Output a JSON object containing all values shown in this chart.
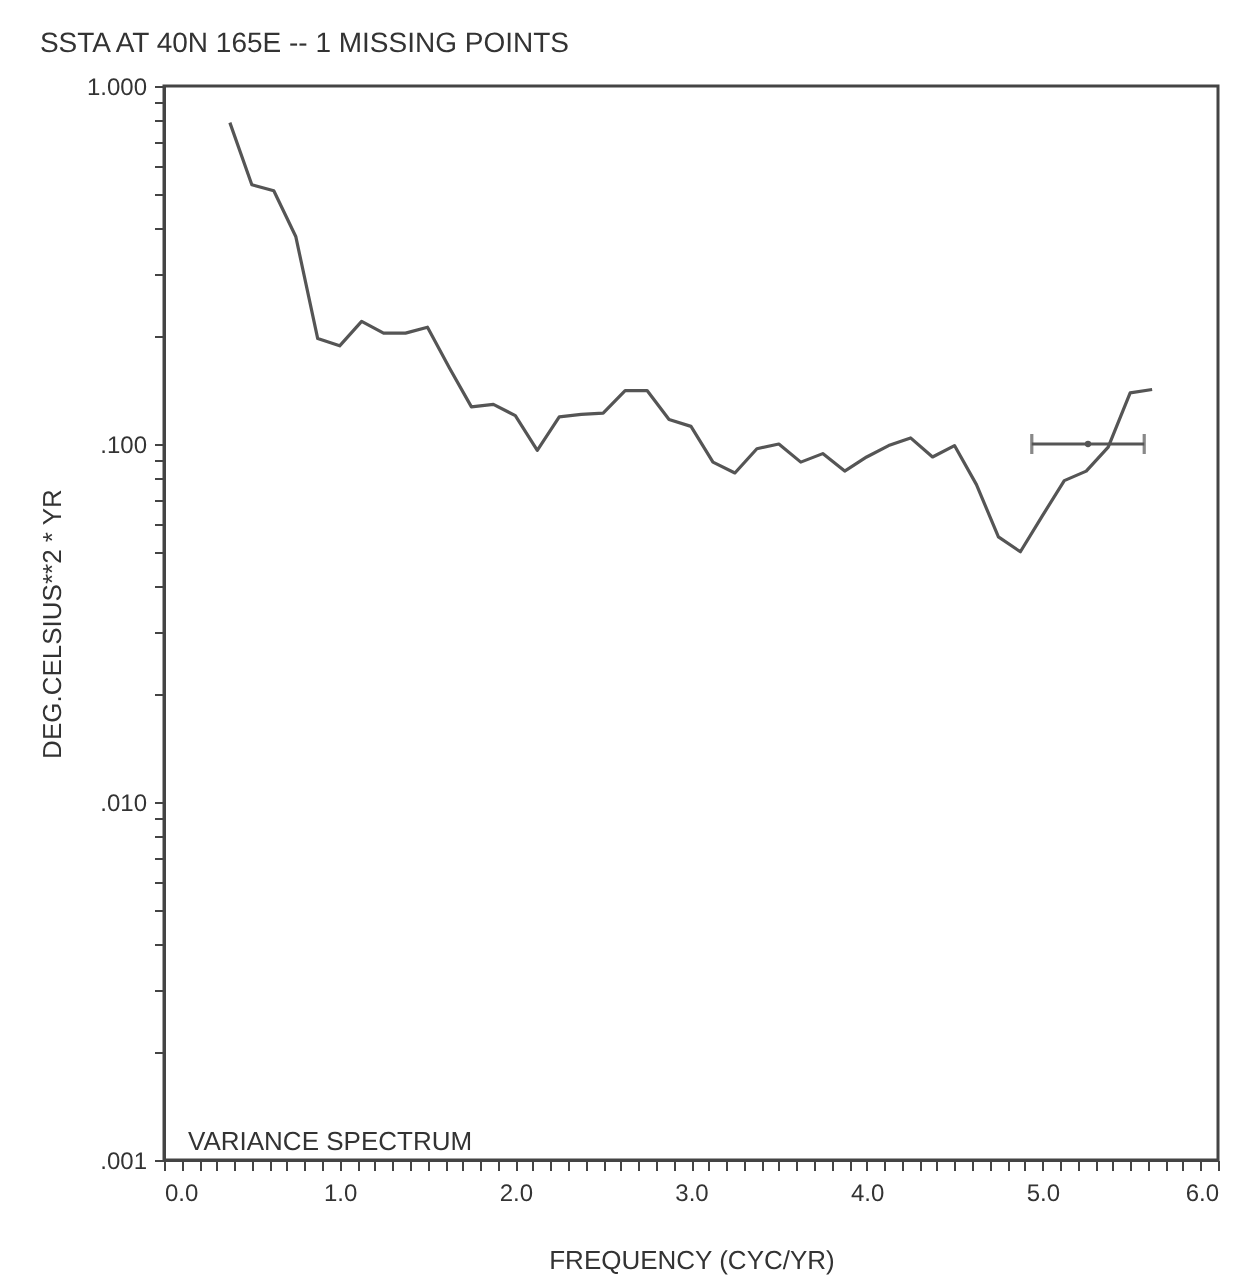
{
  "chart_data": {
    "type": "line",
    "title": "SSTA AT  40N  165E --  1 MISSING POINTS",
    "xlabel": "FREQUENCY (CYC/YR)",
    "ylabel": "DEG.CELSIUS**2 * YR",
    "annotations": [
      "VARIANCE SPECTRUM"
    ],
    "x": [
      0.375,
      0.5,
      0.625,
      0.75,
      0.875,
      1.0,
      1.125,
      1.25,
      1.375,
      1.5,
      1.625,
      1.75,
      1.875,
      2.0,
      2.125,
      2.25,
      2.375,
      2.5,
      2.625,
      2.75,
      2.875,
      3.0,
      3.125,
      3.25,
      3.375,
      3.5,
      3.625,
      3.75,
      3.875,
      4.0,
      4.125,
      4.25,
      4.375,
      4.5,
      4.625,
      4.75,
      4.875,
      5.0,
      5.125,
      5.25,
      5.375,
      5.5,
      5.625
    ],
    "series": [
      {
        "type": "line",
        "color": "#555555",
        "values": [
          0.79,
          0.53,
          0.51,
          0.38,
          0.197,
          0.188,
          0.22,
          0.204,
          0.204,
          0.212,
          0.163,
          0.127,
          0.129,
          0.12,
          0.096,
          0.119,
          0.121,
          0.122,
          0.141,
          0.141,
          0.117,
          0.112,
          0.089,
          0.083,
          0.097,
          0.1,
          0.089,
          0.094,
          0.084,
          0.092,
          0.099,
          0.104,
          0.092,
          0.099,
          0.077,
          0.055,
          0.05,
          0.063,
          0.079,
          0.084,
          0.098,
          0.139,
          0.142
        ]
      },
      {
        "type": "scatter",
        "color": "#555555",
        "x": [
          5.26
        ],
        "values": [
          0.1
        ],
        "xerrors": [
          0.32
        ]
      }
    ],
    "marker": "none",
    "grid": false,
    "log": "y",
    "xlim": [
      0,
      6
    ],
    "ylim": [
      0.001,
      1
    ],
    "xticks": [
      {
        "value": 0,
        "label": "0.0"
      },
      {
        "value": 0.1,
        "label": null
      },
      {
        "value": 0.2,
        "label": null
      },
      {
        "value": 0.3,
        "label": null
      },
      {
        "value": 0.4,
        "label": null
      },
      {
        "value": 0.5,
        "label": null
      },
      {
        "value": 0.6,
        "label": null
      },
      {
        "value": 0.7,
        "label": null
      },
      {
        "value": 0.8,
        "label": null
      },
      {
        "value": 0.9,
        "label": null
      },
      {
        "value": 1,
        "label": "1.0"
      },
      {
        "value": 1.1,
        "label": null
      },
      {
        "value": 1.2,
        "label": null
      },
      {
        "value": 1.3,
        "label": null
      },
      {
        "value": 1.4,
        "label": null
      },
      {
        "value": 1.5,
        "label": null
      },
      {
        "value": 1.6,
        "label": null
      },
      {
        "value": 1.7,
        "label": null
      },
      {
        "value": 1.8,
        "label": null
      },
      {
        "value": 1.9,
        "label": null
      },
      {
        "value": 2,
        "label": "2.0"
      },
      {
        "value": 2.1,
        "label": null
      },
      {
        "value": 2.2,
        "label": null
      },
      {
        "value": 2.3,
        "label": null
      },
      {
        "value": 2.4,
        "label": null
      },
      {
        "value": 2.5,
        "label": null
      },
      {
        "value": 2.6,
        "label": null
      },
      {
        "value": 2.7,
        "label": null
      },
      {
        "value": 2.8,
        "label": null
      },
      {
        "value": 2.9,
        "label": null
      },
      {
        "value": 3,
        "label": "3.0"
      },
      {
        "value": 3.1,
        "label": null
      },
      {
        "value": 3.2,
        "label": null
      },
      {
        "value": 3.3,
        "label": null
      },
      {
        "value": 3.4,
        "label": null
      },
      {
        "value": 3.5,
        "label": null
      },
      {
        "value": 3.6,
        "label": null
      },
      {
        "value": 3.7,
        "label": null
      },
      {
        "value": 3.8,
        "label": null
      },
      {
        "value": 3.9,
        "label": null
      },
      {
        "value": 4,
        "label": "4.0"
      },
      {
        "value": 4.1,
        "label": null
      },
      {
        "value": 4.2,
        "label": null
      },
      {
        "value": 4.3,
        "label": null
      },
      {
        "value": 4.4,
        "label": null
      },
      {
        "value": 4.5,
        "label": null
      },
      {
        "value": 4.6,
        "label": null
      },
      {
        "value": 4.7,
        "label": null
      },
      {
        "value": 4.8,
        "label": null
      },
      {
        "value": 4.9,
        "label": null
      },
      {
        "value": 5,
        "label": "5.0"
      },
      {
        "value": 5.1,
        "label": null
      },
      {
        "value": 5.2,
        "label": null
      },
      {
        "value": 5.3,
        "label": null
      },
      {
        "value": 5.4,
        "label": null
      },
      {
        "value": 5.5,
        "label": null
      },
      {
        "value": 5.6,
        "label": null
      },
      {
        "value": 5.7,
        "label": null
      },
      {
        "value": 5.8,
        "label": null
      },
      {
        "value": 5.9,
        "label": null
      },
      {
        "value": 6,
        "label": "6.0"
      }
    ],
    "yticks": [
      {
        "value": 0.001,
        "label": ".001"
      },
      {
        "value": 0.002,
        "label": null
      },
      {
        "value": 0.003,
        "label": null
      },
      {
        "value": 0.004,
        "label": null
      },
      {
        "value": 0.005,
        "label": null
      },
      {
        "value": 0.006,
        "label": null
      },
      {
        "value": 0.007,
        "label": null
      },
      {
        "value": 0.008,
        "label": null
      },
      {
        "value": 0.009,
        "label": null
      },
      {
        "value": 0.01,
        "label": ".010"
      },
      {
        "value": 0.02,
        "label": null
      },
      {
        "value": 0.03,
        "label": null
      },
      {
        "value": 0.04,
        "label": null
      },
      {
        "value": 0.05,
        "label": null
      },
      {
        "value": 0.06,
        "label": null
      },
      {
        "value": 0.07,
        "label": null
      },
      {
        "value": 0.08,
        "label": null
      },
      {
        "value": 0.09,
        "label": null
      },
      {
        "value": 0.1,
        "label": ".100"
      },
      {
        "value": 0.2,
        "label": null
      },
      {
        "value": 0.3,
        "label": null
      },
      {
        "value": 0.4,
        "label": null
      },
      {
        "value": 0.5,
        "label": null
      },
      {
        "value": 0.6,
        "label": null
      },
      {
        "value": 0.7,
        "label": null
      },
      {
        "value": 0.8,
        "label": null
      },
      {
        "value": 0.9,
        "label": null
      },
      {
        "value": 1,
        "label": "1.000"
      }
    ]
  }
}
